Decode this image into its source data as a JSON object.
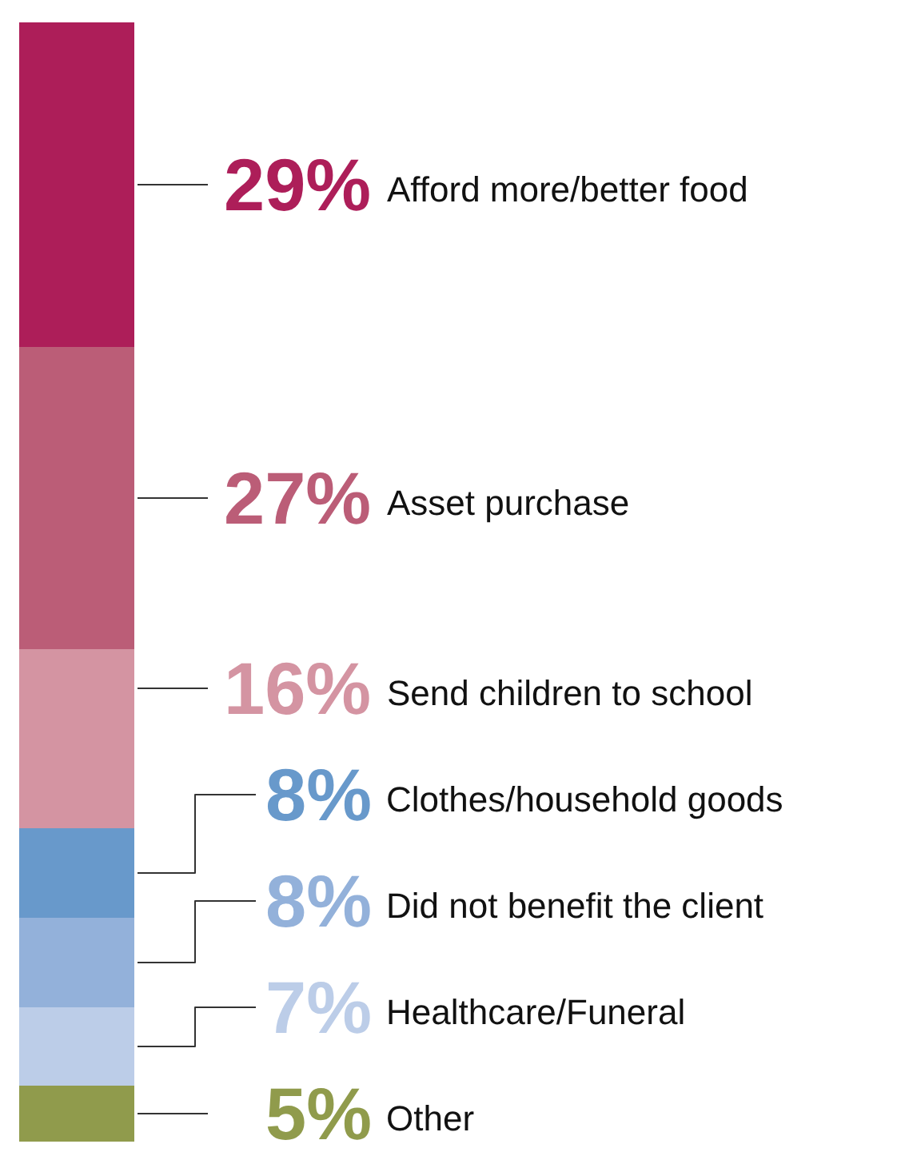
{
  "chart_data": {
    "type": "bar",
    "stacked": true,
    "categories": [
      null
    ],
    "tick_labels": false,
    "series": [
      {
        "name": "Other",
        "color": "#909b4c",
        "values": [
          5
        ],
        "value_labels": [
          "5%"
        ]
      },
      {
        "name": "Healthcare/Funeral",
        "color": "#bccde8",
        "values": [
          7
        ],
        "value_labels": [
          "7%"
        ]
      },
      {
        "name": "Did not benefit the client",
        "color": "#93b1da",
        "values": [
          8
        ],
        "value_labels": [
          "8%"
        ]
      },
      {
        "name": "Clothes/household goods",
        "color": "#6899cb",
        "values": [
          8
        ],
        "value_labels": [
          "8%"
        ]
      },
      {
        "name": "Send children to school",
        "color": "#d494a2",
        "values": [
          16
        ],
        "value_labels": [
          "16%"
        ]
      },
      {
        "name": "Asset purchase",
        "color": "#bb5d77",
        "values": [
          27
        ],
        "value_labels": [
          "27%"
        ]
      },
      {
        "name": "Afford more/better food",
        "color": "#ad1e59",
        "values": [
          29
        ],
        "value_labels": [
          "29%"
        ]
      }
    ]
  }
}
